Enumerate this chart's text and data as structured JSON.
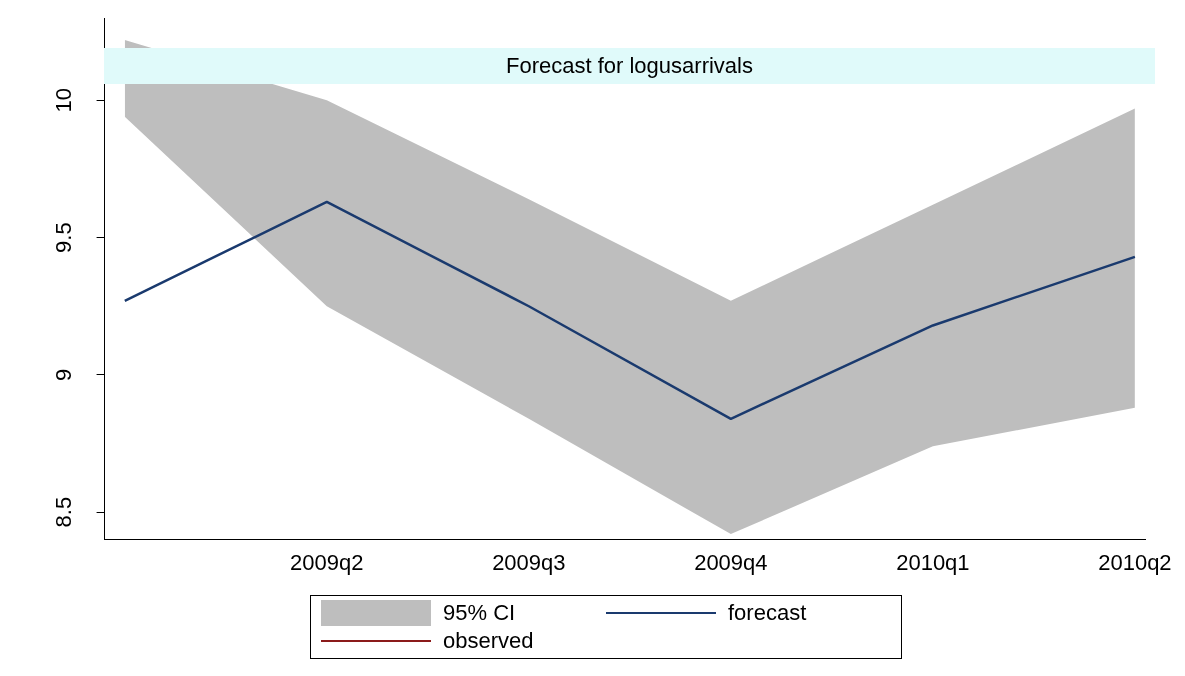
{
  "chart_data": {
    "type": "line",
    "title": "Forecast for logusarrivals",
    "categories": [
      null,
      "2009q2",
      "2009q3",
      "2009q4",
      "2010q1",
      "2010q2"
    ],
    "series": [
      {
        "name": "95% CI",
        "type": "area",
        "color": "#bebebe",
        "values": [
          null,
          null,
          null,
          null,
          null,
          null
        ],
        "lower": [
          9.94,
          9.25,
          8.84,
          8.42,
          8.74,
          8.88
        ],
        "upper": [
          10.22,
          10.0,
          9.64,
          9.27,
          9.62,
          9.97
        ]
      },
      {
        "name": "forecast",
        "color": "#1a3a6e",
        "values": [
          9.27,
          9.63,
          9.25,
          8.84,
          9.18,
          9.43
        ]
      },
      {
        "name": "observed",
        "color": "#8b1a1a",
        "values": [
          null,
          null,
          null,
          null,
          null,
          null
        ]
      }
    ],
    "ylim": [
      8.4,
      10.3
    ],
    "yticks": [
      8.5,
      9,
      9.5,
      10
    ],
    "grid": false,
    "legend": "bottom",
    "marker": "none",
    "line_style": "solid"
  }
}
